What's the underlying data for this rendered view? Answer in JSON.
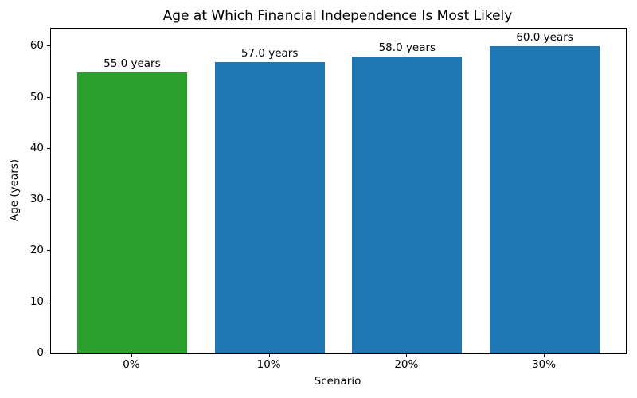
{
  "chart_data": {
    "type": "bar",
    "title": "Age at Which Financial Independence Is Most Likely",
    "xlabel": "Scenario",
    "ylabel": "Age (years)",
    "categories": [
      "0%",
      "10%",
      "20%",
      "30%"
    ],
    "values": [
      55.0,
      57.0,
      58.0,
      60.0
    ],
    "bar_labels": [
      "55.0 years",
      "57.0 years",
      "58.0 years",
      "60.0 years"
    ],
    "bar_colors": [
      "#2ca02c",
      "#1f77b4",
      "#1f77b4",
      "#1f77b4"
    ],
    "ylim": [
      0,
      63.5
    ],
    "yticks": [
      0,
      10,
      20,
      30,
      40,
      50,
      60
    ],
    "grid": false,
    "legend_position": "none",
    "spine_color": "#000000",
    "background_color": "#ffffff"
  }
}
